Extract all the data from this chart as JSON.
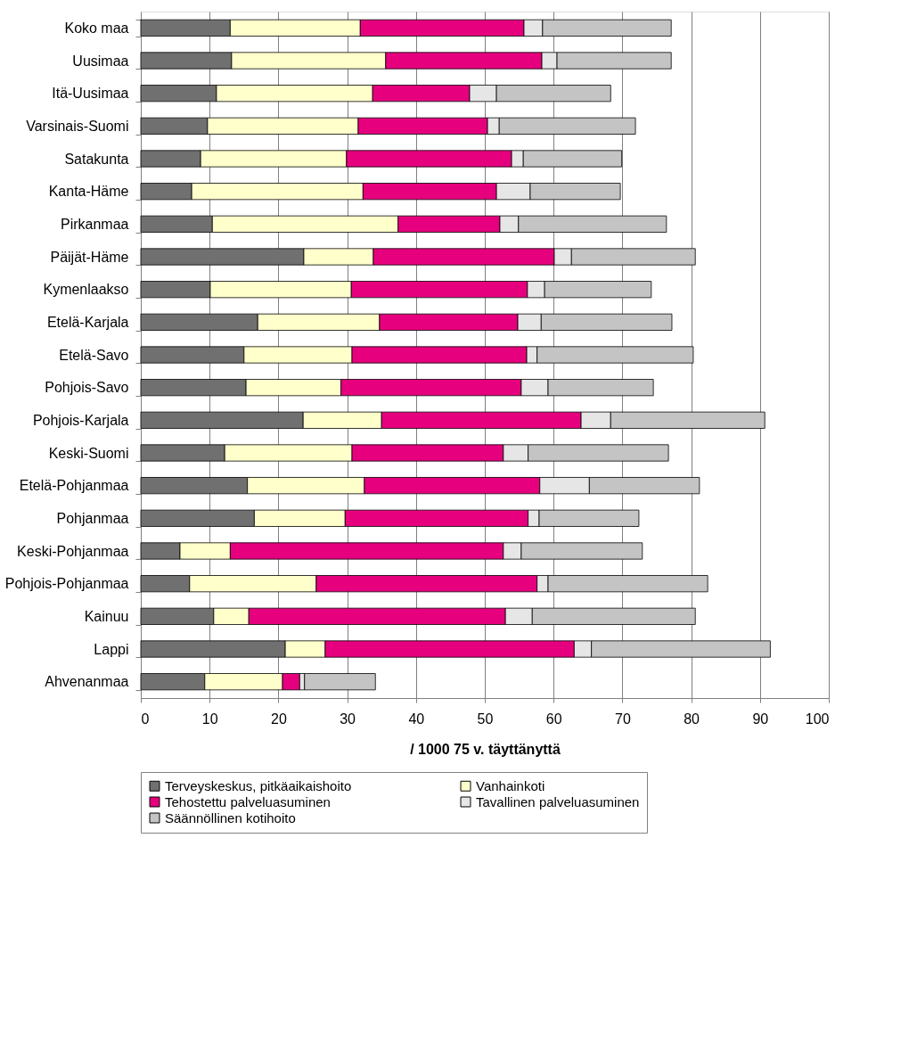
{
  "chart_data": {
    "type": "bar",
    "orientation": "horizontal",
    "stacked": true,
    "xlabel": "/ 1000  75 v. täyttänyttä",
    "categories": [
      "Koko maa",
      "Uusimaa",
      "Itä-Uusimaa",
      "Varsinais-Suomi",
      "Satakunta",
      "Kanta-Häme",
      "Pirkanmaa",
      "Päijät-Häme",
      "Kymenlaakso",
      "Etelä-Karjala",
      "Etelä-Savo",
      "Pohjois-Savo",
      "Pohjois-Karjala",
      "Keski-Suomi",
      "Etelä-Pohjanmaa",
      "Pohjanmaa",
      "Keski-Pohjanmaa",
      "Pohjois-Pohjanmaa",
      "Kainuu",
      "Lappi",
      "Ahvenanmaa"
    ],
    "series": [
      {
        "name": "Terveyskeskus, pitkäaikaishoito",
        "color": "#707070",
        "values": [
          13.0,
          13.2,
          11.0,
          9.7,
          8.7,
          7.4,
          10.4,
          23.7,
          10.1,
          17.0,
          15.0,
          15.3,
          23.6,
          12.2,
          15.5,
          16.5,
          5.7,
          7.1,
          10.6,
          21.0,
          9.3
        ]
      },
      {
        "name": "Vanhainkoti",
        "color": "#ffffcc",
        "values": [
          18.9,
          22.4,
          22.7,
          21.9,
          21.2,
          24.9,
          27.0,
          10.1,
          20.5,
          17.7,
          15.7,
          13.8,
          11.4,
          18.5,
          17.0,
          13.2,
          7.3,
          18.4,
          5.1,
          5.8,
          11.3
        ]
      },
      {
        "name": "Tehostettu palveluasuminen",
        "color": "#e6007e",
        "values": [
          23.8,
          22.7,
          14.1,
          18.8,
          24.0,
          19.4,
          14.8,
          26.3,
          25.6,
          20.1,
          25.4,
          26.2,
          29.0,
          22.0,
          25.5,
          26.6,
          39.7,
          32.1,
          37.3,
          36.2,
          2.5
        ]
      },
      {
        "name": "Tavallinen palveluasuminen",
        "color": "#e6e6e6",
        "values": [
          2.7,
          2.2,
          3.9,
          1.7,
          1.7,
          4.9,
          2.7,
          2.5,
          2.5,
          3.4,
          1.5,
          3.9,
          4.3,
          3.6,
          7.2,
          1.6,
          2.6,
          1.6,
          3.9,
          2.5,
          0.7
        ]
      },
      {
        "name": "Säännöllinen kotihoito",
        "color": "#c4c4c4",
        "values": [
          18.7,
          16.6,
          16.6,
          19.8,
          14.3,
          13.1,
          21.5,
          18.0,
          15.5,
          19.0,
          22.7,
          15.3,
          22.4,
          20.4,
          16.0,
          14.5,
          17.6,
          23.2,
          23.7,
          26.0,
          10.3
        ]
      }
    ],
    "xlim": [
      0,
      100
    ],
    "xticks": [
      0,
      10,
      20,
      30,
      40,
      50,
      60,
      70,
      80,
      90,
      100
    ],
    "grid": "x",
    "legend": "bottom"
  }
}
